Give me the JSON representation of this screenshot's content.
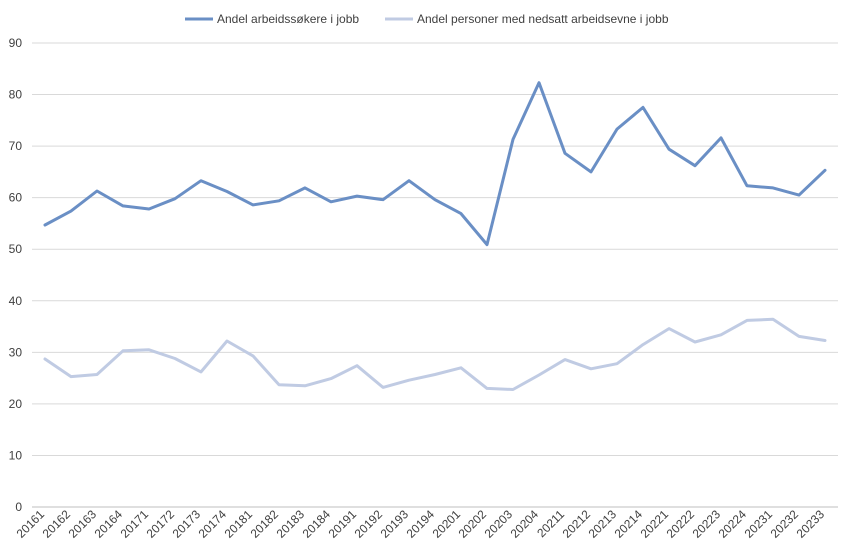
{
  "chart_data": {
    "type": "line",
    "categories": [
      "20161",
      "20162",
      "20163",
      "20164",
      "20171",
      "20172",
      "20173",
      "20174",
      "20181",
      "20182",
      "20183",
      "20184",
      "20191",
      "20192",
      "20193",
      "20194",
      "20201",
      "20202",
      "20203",
      "20204",
      "20211",
      "20212",
      "20213",
      "20214",
      "20221",
      "20222",
      "20223",
      "20224",
      "20231",
      "20232",
      "20233"
    ],
    "series": [
      {
        "name": "Andel arbeidssøkere i jobb",
        "color": "#6a8fc5",
        "values": [
          54.7,
          57.4,
          61.3,
          58.4,
          57.8,
          59.8,
          63.3,
          61.2,
          58.6,
          59.4,
          61.9,
          59.2,
          60.3,
          59.6,
          63.3,
          59.6,
          56.9,
          50.9,
          71.3,
          82.3,
          68.6,
          65.0,
          73.3,
          77.5,
          69.4,
          66.2,
          71.6,
          62.3,
          61.9,
          60.5,
          65.3
        ]
      },
      {
        "name": "Andel personer med nedsatt arbeidsevne i jobb",
        "color": "#c0cbe3",
        "values": [
          28.7,
          25.3,
          25.7,
          30.3,
          30.5,
          28.8,
          26.2,
          32.2,
          29.3,
          23.7,
          23.5,
          24.9,
          27.4,
          23.2,
          24.6,
          25.7,
          27.0,
          23.0,
          22.8,
          25.6,
          28.6,
          26.8,
          27.8,
          31.5,
          34.6,
          32.0,
          33.4,
          36.2,
          36.4,
          33.1,
          32.3
        ]
      }
    ],
    "yticks": [
      "0",
      "10",
      "20",
      "30",
      "40",
      "50",
      "60",
      "70",
      "80",
      "90"
    ],
    "ylim": [
      0,
      90
    ],
    "grid": true,
    "legend_position": "top-center"
  }
}
